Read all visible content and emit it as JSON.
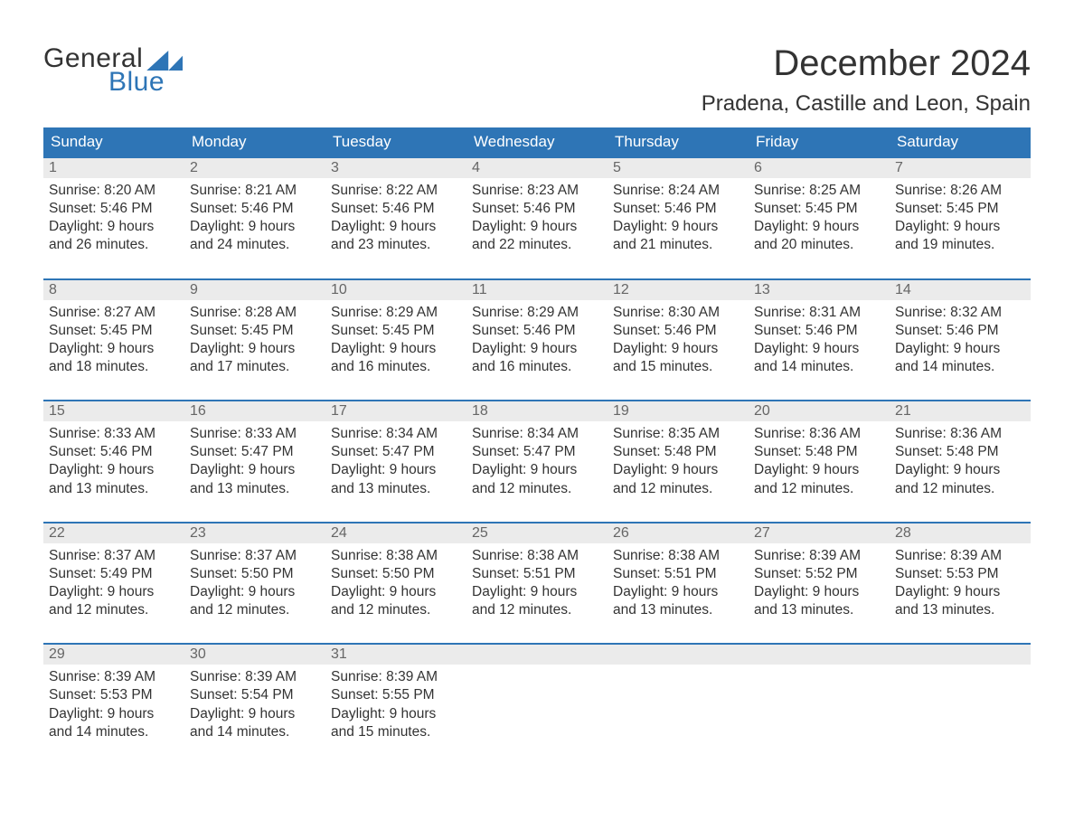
{
  "brand": {
    "general": "General",
    "blue": "Blue"
  },
  "title": "December 2024",
  "location": "Pradena, Castille and Leon, Spain",
  "colors": {
    "header_bg": "#2e75b6",
    "header_text": "#ffffff",
    "daynum_bg": "#ebebeb",
    "daynum_text": "#666666",
    "body_text": "#333333",
    "week_border": "#2e75b6",
    "page_bg": "#ffffff"
  },
  "fonts": {
    "title_size": 40,
    "location_size": 24,
    "dow_size": 17,
    "cell_size": 15.5
  },
  "days_of_week": [
    "Sunday",
    "Monday",
    "Tuesday",
    "Wednesday",
    "Thursday",
    "Friday",
    "Saturday"
  ],
  "weeks": [
    [
      {
        "n": "1",
        "sunrise": "8:20 AM",
        "sunset": "5:46 PM",
        "dl1": "Daylight: 9 hours",
        "dl2": "and 26 minutes."
      },
      {
        "n": "2",
        "sunrise": "8:21 AM",
        "sunset": "5:46 PM",
        "dl1": "Daylight: 9 hours",
        "dl2": "and 24 minutes."
      },
      {
        "n": "3",
        "sunrise": "8:22 AM",
        "sunset": "5:46 PM",
        "dl1": "Daylight: 9 hours",
        "dl2": "and 23 minutes."
      },
      {
        "n": "4",
        "sunrise": "8:23 AM",
        "sunset": "5:46 PM",
        "dl1": "Daylight: 9 hours",
        "dl2": "and 22 minutes."
      },
      {
        "n": "5",
        "sunrise": "8:24 AM",
        "sunset": "5:46 PM",
        "dl1": "Daylight: 9 hours",
        "dl2": "and 21 minutes."
      },
      {
        "n": "6",
        "sunrise": "8:25 AM",
        "sunset": "5:45 PM",
        "dl1": "Daylight: 9 hours",
        "dl2": "and 20 minutes."
      },
      {
        "n": "7",
        "sunrise": "8:26 AM",
        "sunset": "5:45 PM",
        "dl1": "Daylight: 9 hours",
        "dl2": "and 19 minutes."
      }
    ],
    [
      {
        "n": "8",
        "sunrise": "8:27 AM",
        "sunset": "5:45 PM",
        "dl1": "Daylight: 9 hours",
        "dl2": "and 18 minutes."
      },
      {
        "n": "9",
        "sunrise": "8:28 AM",
        "sunset": "5:45 PM",
        "dl1": "Daylight: 9 hours",
        "dl2": "and 17 minutes."
      },
      {
        "n": "10",
        "sunrise": "8:29 AM",
        "sunset": "5:45 PM",
        "dl1": "Daylight: 9 hours",
        "dl2": "and 16 minutes."
      },
      {
        "n": "11",
        "sunrise": "8:29 AM",
        "sunset": "5:46 PM",
        "dl1": "Daylight: 9 hours",
        "dl2": "and 16 minutes."
      },
      {
        "n": "12",
        "sunrise": "8:30 AM",
        "sunset": "5:46 PM",
        "dl1": "Daylight: 9 hours",
        "dl2": "and 15 minutes."
      },
      {
        "n": "13",
        "sunrise": "8:31 AM",
        "sunset": "5:46 PM",
        "dl1": "Daylight: 9 hours",
        "dl2": "and 14 minutes."
      },
      {
        "n": "14",
        "sunrise": "8:32 AM",
        "sunset": "5:46 PM",
        "dl1": "Daylight: 9 hours",
        "dl2": "and 14 minutes."
      }
    ],
    [
      {
        "n": "15",
        "sunrise": "8:33 AM",
        "sunset": "5:46 PM",
        "dl1": "Daylight: 9 hours",
        "dl2": "and 13 minutes."
      },
      {
        "n": "16",
        "sunrise": "8:33 AM",
        "sunset": "5:47 PM",
        "dl1": "Daylight: 9 hours",
        "dl2": "and 13 minutes."
      },
      {
        "n": "17",
        "sunrise": "8:34 AM",
        "sunset": "5:47 PM",
        "dl1": "Daylight: 9 hours",
        "dl2": "and 13 minutes."
      },
      {
        "n": "18",
        "sunrise": "8:34 AM",
        "sunset": "5:47 PM",
        "dl1": "Daylight: 9 hours",
        "dl2": "and 12 minutes."
      },
      {
        "n": "19",
        "sunrise": "8:35 AM",
        "sunset": "5:48 PM",
        "dl1": "Daylight: 9 hours",
        "dl2": "and 12 minutes."
      },
      {
        "n": "20",
        "sunrise": "8:36 AM",
        "sunset": "5:48 PM",
        "dl1": "Daylight: 9 hours",
        "dl2": "and 12 minutes."
      },
      {
        "n": "21",
        "sunrise": "8:36 AM",
        "sunset": "5:48 PM",
        "dl1": "Daylight: 9 hours",
        "dl2": "and 12 minutes."
      }
    ],
    [
      {
        "n": "22",
        "sunrise": "8:37 AM",
        "sunset": "5:49 PM",
        "dl1": "Daylight: 9 hours",
        "dl2": "and 12 minutes."
      },
      {
        "n": "23",
        "sunrise": "8:37 AM",
        "sunset": "5:50 PM",
        "dl1": "Daylight: 9 hours",
        "dl2": "and 12 minutes."
      },
      {
        "n": "24",
        "sunrise": "8:38 AM",
        "sunset": "5:50 PM",
        "dl1": "Daylight: 9 hours",
        "dl2": "and 12 minutes."
      },
      {
        "n": "25",
        "sunrise": "8:38 AM",
        "sunset": "5:51 PM",
        "dl1": "Daylight: 9 hours",
        "dl2": "and 12 minutes."
      },
      {
        "n": "26",
        "sunrise": "8:38 AM",
        "sunset": "5:51 PM",
        "dl1": "Daylight: 9 hours",
        "dl2": "and 13 minutes."
      },
      {
        "n": "27",
        "sunrise": "8:39 AM",
        "sunset": "5:52 PM",
        "dl1": "Daylight: 9 hours",
        "dl2": "and 13 minutes."
      },
      {
        "n": "28",
        "sunrise": "8:39 AM",
        "sunset": "5:53 PM",
        "dl1": "Daylight: 9 hours",
        "dl2": "and 13 minutes."
      }
    ],
    [
      {
        "n": "29",
        "sunrise": "8:39 AM",
        "sunset": "5:53 PM",
        "dl1": "Daylight: 9 hours",
        "dl2": "and 14 minutes."
      },
      {
        "n": "30",
        "sunrise": "8:39 AM",
        "sunset": "5:54 PM",
        "dl1": "Daylight: 9 hours",
        "dl2": "and 14 minutes."
      },
      {
        "n": "31",
        "sunrise": "8:39 AM",
        "sunset": "5:55 PM",
        "dl1": "Daylight: 9 hours",
        "dl2": "and 15 minutes."
      },
      null,
      null,
      null,
      null
    ]
  ],
  "labels": {
    "sunrise_prefix": "Sunrise: ",
    "sunset_prefix": "Sunset: "
  }
}
